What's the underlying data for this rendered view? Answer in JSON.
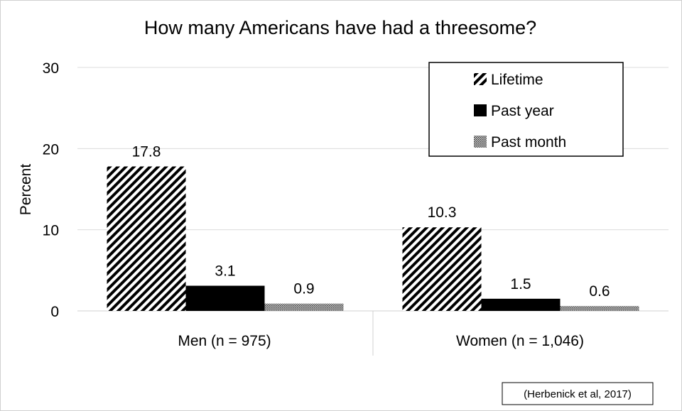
{
  "chart_data": {
    "type": "bar",
    "title": "How many Americans have had a threesome?",
    "ylabel": "Percent",
    "xlabel": "",
    "ylim": [
      0,
      30
    ],
    "yticks": [
      0,
      10,
      20,
      30
    ],
    "grid": true,
    "legend_position": "top-right",
    "categories": [
      "Men (n = 975)",
      "Women (n = 1,046)"
    ],
    "series": [
      {
        "name": "Lifetime",
        "values": [
          17.8,
          10.3
        ],
        "labels": [
          "17.8",
          "10.3"
        ],
        "pattern": "diagonal-hatch"
      },
      {
        "name": "Past year",
        "values": [
          3.1,
          1.5
        ],
        "labels": [
          "3.1",
          "1.5"
        ],
        "pattern": "solid-black"
      },
      {
        "name": "Past month",
        "values": [
          0.9,
          0.6
        ],
        "labels": [
          "0.9",
          "0.6"
        ],
        "pattern": "dotted-gray"
      }
    ],
    "source": "(Herbenick et al, 2017)"
  }
}
